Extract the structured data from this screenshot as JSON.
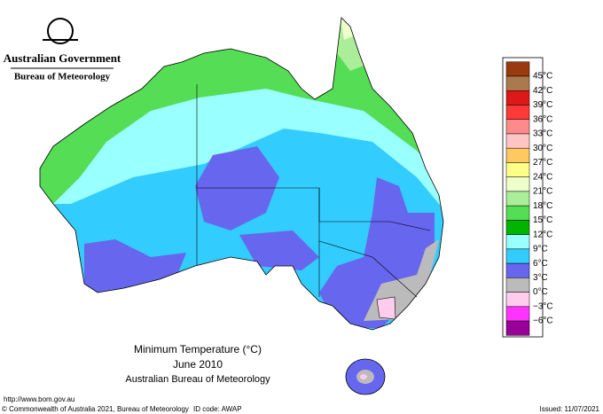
{
  "header": {
    "title": "Australian Government",
    "subtitle": "Bureau of Meteorology"
  },
  "legend": {
    "labels": [
      "45°C",
      "42°C",
      "39°C",
      "36°C",
      "33°C",
      "30°C",
      "27°C",
      "24°C",
      "21°C",
      "18°C",
      "15°C",
      "12°C",
      "9°C",
      "6°C",
      "3°C",
      "0°C",
      "−3°C",
      "−6°C"
    ],
    "colors": [
      "#9a3a10",
      "#aa7a4e",
      "#dd1818",
      "#ff3838",
      "#ff8a8a",
      "#ffc4c4",
      "#ffc860",
      "#ffff88",
      "#eeffcc",
      "#aaee99",
      "#55dd55",
      "#00b400",
      "#99ffff",
      "#33ccff",
      "#6666ee",
      "#bbbbbb",
      "#ffccee",
      "#ff33ff",
      "#990099"
    ]
  },
  "caption": {
    "title": "Minimum Temperature (°C)",
    "period": "June 2010",
    "source": "Australian Bureau of Meteorology"
  },
  "footer": {
    "url": "http://www.bom.gov.au",
    "copyright": "© Commonwealth of Australia 2021, Bureau of Meteorology",
    "id_code": "ID code: AWAP",
    "issued": "Issued: 11/07/2021"
  }
}
